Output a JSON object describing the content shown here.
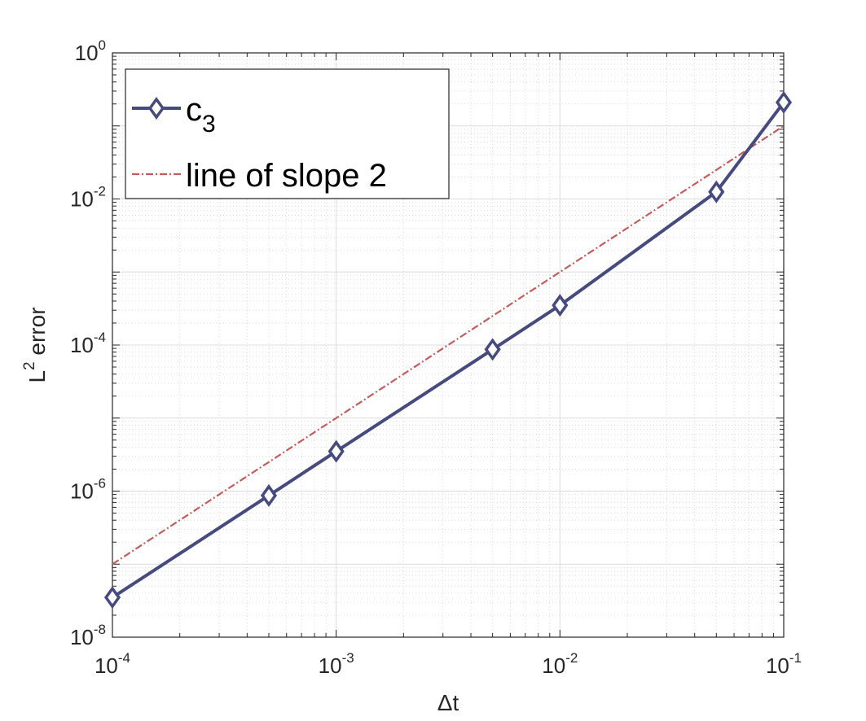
{
  "chart_data": {
    "type": "line",
    "x_scale": "log",
    "y_scale": "log",
    "xlim": [
      0.0001,
      0.1
    ],
    "ylim": [
      1e-08,
      1
    ],
    "xlabel": "Δt",
    "ylabel": "L",
    "ylabel_superscript": "2",
    "ylabel_suffix": " error",
    "x_ticks": [
      {
        "base": "10",
        "exp": "-4"
      },
      {
        "base": "10",
        "exp": "-3"
      },
      {
        "base": "10",
        "exp": "-2"
      },
      {
        "base": "10",
        "exp": "-1"
      }
    ],
    "y_ticks": [
      {
        "base": "10",
        "exp": "-8"
      },
      {
        "base": "10",
        "exp": "-6"
      },
      {
        "base": "10",
        "exp": "-4"
      },
      {
        "base": "10",
        "exp": "-2"
      },
      {
        "base": "10",
        "exp": "0"
      }
    ],
    "grid": true,
    "minor_grid": true,
    "legend_position": "top-left",
    "series": [
      {
        "name": "c",
        "name_subscript": "3",
        "color": "#474a7f",
        "style": "solid",
        "marker": "diamond",
        "x": [
          0.0001,
          0.0005,
          0.001,
          0.005,
          0.01,
          0.05,
          0.1
        ],
        "y": [
          3.5e-08,
          8.7e-07,
          3.5e-06,
          8.7e-05,
          0.00035,
          0.0125,
          0.21
        ]
      },
      {
        "name": "line of slope 2",
        "color": "#c45c5c",
        "style": "dashdot",
        "marker": "none",
        "x": [
          0.0001,
          0.1
        ],
        "y": [
          1e-07,
          0.1
        ]
      }
    ]
  }
}
